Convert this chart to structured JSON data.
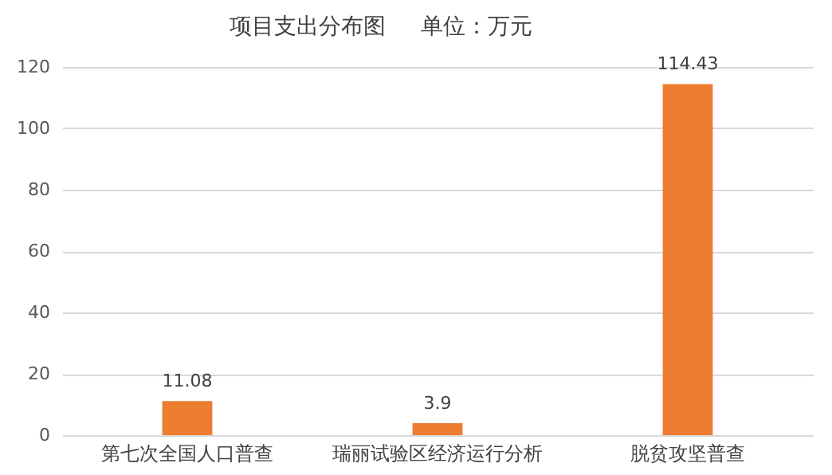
{
  "chart_data": {
    "type": "bar",
    "title": "项目支出分布图",
    "annotations": [
      "单位：万元"
    ],
    "categories": [
      "第七次全国人口普查",
      "瑞丽试验区经济运行分析",
      "脱贫攻坚普查"
    ],
    "values": [
      11.08,
      3.9,
      114.43
    ],
    "color": "#ed7d31",
    "ylim": [
      0,
      120
    ],
    "yticks": [
      0,
      20,
      40,
      60,
      80,
      100,
      120
    ],
    "grid": "y",
    "data_labels": true
  }
}
